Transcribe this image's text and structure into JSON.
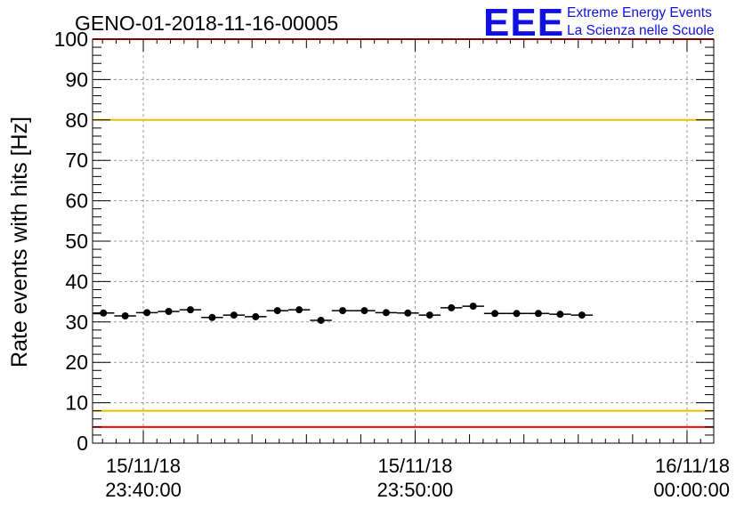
{
  "chart_data": {
    "type": "scatter",
    "title": "GENO-01-2018-11-16-00005",
    "ylabel": "Rate events with hits [Hz]",
    "xlabel": "",
    "ylim": [
      0,
      100
    ],
    "yticks": [
      "0",
      "10",
      "20",
      "30",
      "40",
      "50",
      "60",
      "70",
      "80",
      "90",
      "100"
    ],
    "x_ticks": [
      {
        "date": "15/11/18",
        "time": "23:40:00",
        "t": "2018-11-15 23:40:00"
      },
      {
        "date": "15/11/18",
        "time": "23:50:00",
        "t": "2018-11-15 23:50:00"
      },
      {
        "date": "16/11/18",
        "time": "00:00:00",
        "t": "2018-11-16 00:00:00"
      }
    ],
    "xlim": [
      "2018-11-15 23:38:08",
      "2018-11-16 00:00:59"
    ],
    "grid": true,
    "bin_width_seconds": 48,
    "series": [
      {
        "marker": "filled-circle",
        "color": "#000000",
        "x": [
          "23:38:32",
          "23:39:20",
          "23:40:08",
          "23:40:56",
          "23:41:44",
          "23:42:32",
          "23:43:20",
          "23:44:08",
          "23:44:56",
          "23:45:44",
          "23:46:32",
          "23:47:20",
          "23:48:08",
          "23:48:56",
          "23:49:44",
          "23:50:32",
          "23:51:20",
          "23:52:08",
          "23:52:56",
          "23:53:44",
          "23:54:32",
          "23:55:20",
          "23:56:08",
          "23:56:56",
          "23:57:44",
          "23:58:32",
          "23:59:20",
          "00:00:08",
          "00:00:56"
        ],
        "values": [
          32.2,
          31.5,
          32.3,
          32.6,
          33.0,
          31.1,
          31.7,
          31.3,
          32.8,
          33.0,
          30.4,
          32.8,
          32.8,
          32.3,
          32.2,
          31.7,
          33.5,
          33.9,
          32.1,
          32.1,
          32.1,
          31.9,
          31.7,
          null,
          null,
          null,
          null,
          null,
          null
        ]
      }
    ],
    "reference_lines": [
      {
        "y": 4,
        "color": "#ff0000"
      },
      {
        "y": 8,
        "color": "#e8c000"
      },
      {
        "y": 80,
        "color": "#e8c000"
      },
      {
        "y": 100,
        "color": "#ff0000"
      }
    ]
  },
  "logo": {
    "mark": "EEE",
    "line1": "Extreme Energy Events",
    "line2": "La Scienza nelle Scuole",
    "color": "#1010e0"
  }
}
